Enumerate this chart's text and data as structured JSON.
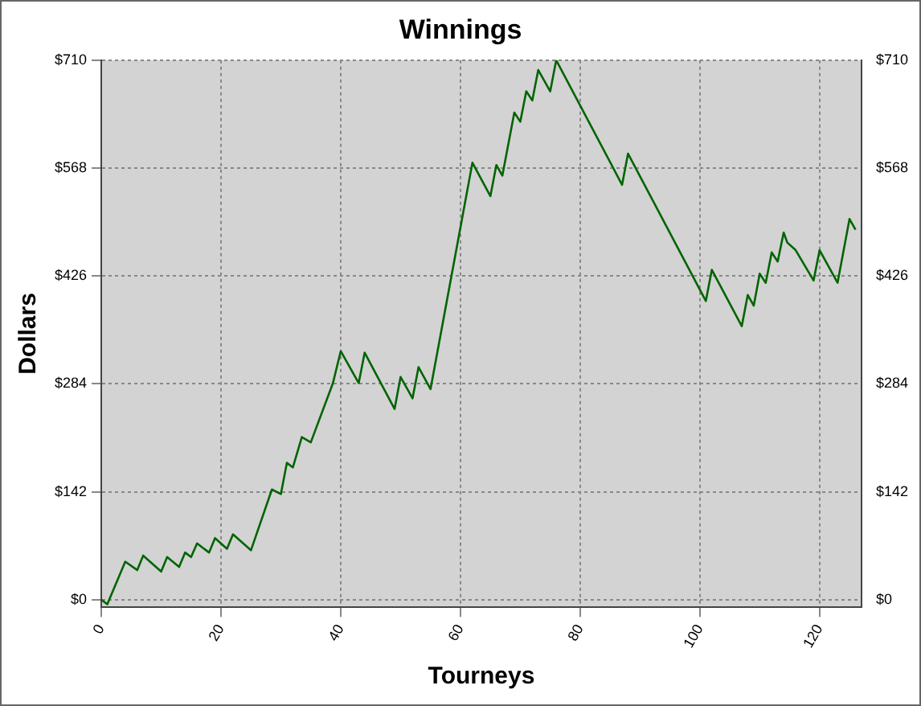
{
  "chart_data": {
    "type": "line",
    "title": "Winnings",
    "xlabel": "Tourneys",
    "ylabel": "Dollars",
    "x": [
      0,
      1,
      4,
      6,
      7,
      10,
      11,
      13,
      14,
      15,
      16,
      18,
      19,
      21,
      22,
      25,
      28.5,
      30,
      31,
      32,
      33.5,
      35,
      38.7,
      40,
      43,
      44,
      49,
      50,
      52,
      53,
      55,
      62,
      65,
      66,
      67,
      69,
      70,
      71,
      72,
      73,
      75,
      76,
      87,
      88,
      101,
      102,
      107,
      108,
      109,
      110,
      111,
      112,
      113,
      114,
      114.6,
      116,
      119,
      120,
      123,
      125,
      126
    ],
    "series": [
      {
        "color": "#006400",
        "values": [
          0,
          -6,
          50,
          39,
          58,
          37,
          56,
          43,
          62,
          56,
          74,
          62,
          81,
          67,
          86,
          65,
          145,
          139,
          180,
          174,
          214,
          207,
          285,
          327,
          285,
          325,
          251,
          293,
          265,
          306,
          277,
          575,
          531,
          572,
          558,
          641,
          629,
          669,
          657,
          697,
          669,
          710,
          546,
          587,
          393,
          434,
          360,
          401,
          387,
          429,
          417,
          457,
          445,
          483,
          470,
          460,
          420,
          460,
          417,
          501,
          487
        ]
      }
    ],
    "xlim": [
      0,
      127
    ],
    "xticks": [
      0,
      20,
      40,
      60,
      80,
      100,
      120
    ],
    "ylim": [
      -10,
      710
    ],
    "yticks": [
      {
        "value": 0,
        "label": "$0"
      },
      {
        "value": 142,
        "label": "$142"
      },
      {
        "value": 284,
        "label": "$284"
      },
      {
        "value": 426,
        "label": "$426"
      },
      {
        "value": 568,
        "label": "$568"
      },
      {
        "value": 710,
        "label": "$710"
      }
    ],
    "y2lim": [
      -10,
      710
    ],
    "y2ticks": [
      {
        "value": 0,
        "label": "$0"
      },
      {
        "value": 142,
        "label": "$142"
      },
      {
        "value": 284,
        "label": "$284"
      },
      {
        "value": 426,
        "label": "$426"
      },
      {
        "value": 568,
        "label": "$568"
      },
      {
        "value": 710,
        "label": "$710"
      }
    ],
    "grid": true,
    "legend": false,
    "marker": "none",
    "line_style": "solid"
  }
}
